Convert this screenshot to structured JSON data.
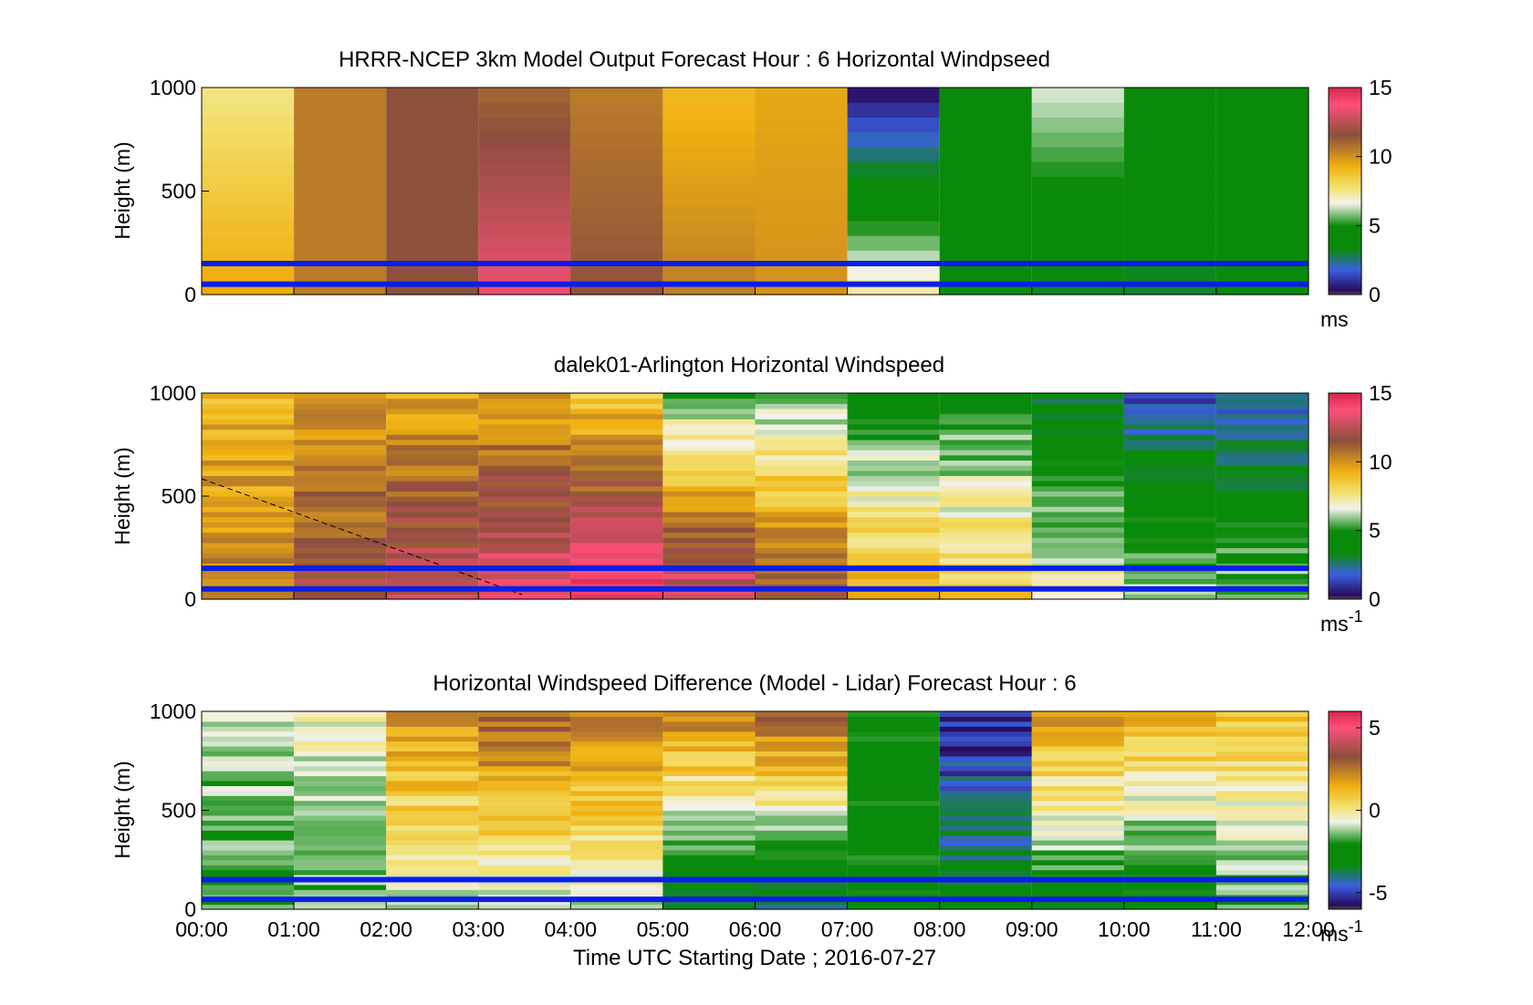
{
  "figure": {
    "xlabel": "Time UTC  Starting Date ; 2016-07-27",
    "xticks": [
      "00:00",
      "01:00",
      "02:00",
      "03:00",
      "04:00",
      "05:00",
      "06:00",
      "07:00",
      "08:00",
      "09:00",
      "10:00",
      "11:00",
      "12:00"
    ]
  },
  "chart_data": [
    {
      "type": "heatmap",
      "title": "HRRR-NCEP 3km Model Output   Forecast Hour : 6 Horizontal Windpseed",
      "ylabel": "Height (m)",
      "yticks": [
        "0",
        "500",
        "1000"
      ],
      "ylim": [
        0,
        1000
      ],
      "xlim_hours": [
        0,
        12
      ],
      "colorbar": {
        "ticks": [
          "0",
          "5",
          "10",
          "15"
        ],
        "range": [
          0,
          15
        ],
        "unit": "ms",
        "unit_sup": ""
      },
      "reference_lines_m": [
        50,
        150
      ],
      "bands": [
        {
          "start": 0,
          "end": 1,
          "base": 9.5,
          "top": 7.5
        },
        {
          "start": 1,
          "end": 2,
          "base": 10.5,
          "top": 10.5
        },
        {
          "start": 2,
          "end": 3,
          "base": 11.5,
          "top": 11.5
        },
        {
          "start": 3,
          "end": 4,
          "base": 13.5,
          "top": 11
        },
        {
          "start": 4,
          "end": 5,
          "base": 11.5,
          "top": 10.5
        },
        {
          "start": 5,
          "end": 6,
          "base": 10.5,
          "top": 9
        },
        {
          "start": 6,
          "end": 7,
          "base": 10,
          "top": 9.5
        },
        {
          "start": 7,
          "end": 8,
          "base": 7.5,
          "top": 0.2
        },
        {
          "start": 8,
          "end": 9,
          "base": 5,
          "top": 4.5
        },
        {
          "start": 9,
          "end": 10,
          "base": 3,
          "top": 6.5
        },
        {
          "start": 10,
          "end": 11,
          "base": 3,
          "top": 4.5
        },
        {
          "start": 11,
          "end": 12,
          "base": 4,
          "top": 4.5
        }
      ],
      "colors": {
        "gray": "#a8a8a8",
        "magenta": "#ff4f7a",
        "crimson": "#d6264a",
        "brown": "#8c4f3c",
        "orange": "#f0b010",
        "yellow": "#f2e06a",
        "white": "#f2f2ea",
        "green": "#0a8a0a",
        "blue": "#3a60e0",
        "purple": "#2a0a5e",
        "darkgray": "#505050"
      }
    },
    {
      "type": "heatmap",
      "title": "dalek01-Arlington  Horizontal Windspeed",
      "ylabel": "Height (m)",
      "yticks": [
        "0",
        "500",
        "1000"
      ],
      "ylim": [
        0,
        1000
      ],
      "xlim_hours": [
        0,
        12
      ],
      "colorbar": {
        "ticks": [
          "0",
          "5",
          "10",
          "15"
        ],
        "range": [
          0,
          15
        ],
        "unit": "ms",
        "unit_sup": "-1"
      },
      "reference_lines_m": [
        50,
        150
      ],
      "bands": [
        {
          "start": 0,
          "end": 1,
          "base": 10.5,
          "top": 9
        },
        {
          "start": 1,
          "end": 2,
          "base": 12,
          "top": 9.5
        },
        {
          "start": 2,
          "end": 3,
          "base": 13,
          "top": 9.5
        },
        {
          "start": 3,
          "end": 4,
          "base": 14,
          "top": 9.5
        },
        {
          "start": 4,
          "end": 5,
          "base": 14.5,
          "top": 8.5
        },
        {
          "start": 5,
          "end": 6,
          "base": 13.5,
          "top": 5.5
        },
        {
          "start": 6,
          "end": 7,
          "base": 12,
          "top": 5.5
        },
        {
          "start": 7,
          "end": 8,
          "base": 9.5,
          "top": 4.5
        },
        {
          "start": 8,
          "end": 9,
          "base": 9,
          "top": 4.5
        },
        {
          "start": 9,
          "end": 10,
          "base": 7.5,
          "top": 3
        },
        {
          "start": 10,
          "end": 11,
          "base": 6.5,
          "top": 1.5
        },
        {
          "start": 11,
          "end": 12,
          "base": 6,
          "top": 2
        }
      ]
    },
    {
      "type": "heatmap",
      "title": "Horizontal Windspeed Difference (Model - Lidar) Forecast Hour : 6",
      "ylabel": "Height (m)",
      "yticks": [
        "0",
        "500",
        "1000"
      ],
      "ylim": [
        0,
        1000
      ],
      "xlim_hours": [
        0,
        12
      ],
      "colorbar": {
        "ticks": [
          "-5",
          "0",
          "5"
        ],
        "range": [
          -6,
          6
        ],
        "unit": "ms",
        "unit_sup": "-1"
      },
      "reference_lines_m": [
        50,
        150
      ],
      "bands": [
        {
          "start": 0,
          "end": 1,
          "base": -2,
          "top": -1
        },
        {
          "start": 1,
          "end": 2,
          "base": -1.5,
          "top": -0.5
        },
        {
          "start": 2,
          "end": 3,
          "base": -1,
          "top": 2
        },
        {
          "start": 3,
          "end": 4,
          "base": -1,
          "top": 3
        },
        {
          "start": 4,
          "end": 5,
          "base": -1,
          "top": 2.5
        },
        {
          "start": 5,
          "end": 6,
          "base": -4,
          "top": 2.5
        },
        {
          "start": 6,
          "end": 7,
          "base": -4,
          "top": 3
        },
        {
          "start": 7,
          "end": 8,
          "base": -2.5,
          "top": -2.5
        },
        {
          "start": 8,
          "end": 9,
          "base": -3,
          "top": -5.5
        },
        {
          "start": 9,
          "end": 10,
          "base": -3,
          "top": 2
        },
        {
          "start": 10,
          "end": 11,
          "base": -3,
          "top": 1.5
        },
        {
          "start": 11,
          "end": 12,
          "base": -2,
          "top": 1
        }
      ]
    }
  ]
}
